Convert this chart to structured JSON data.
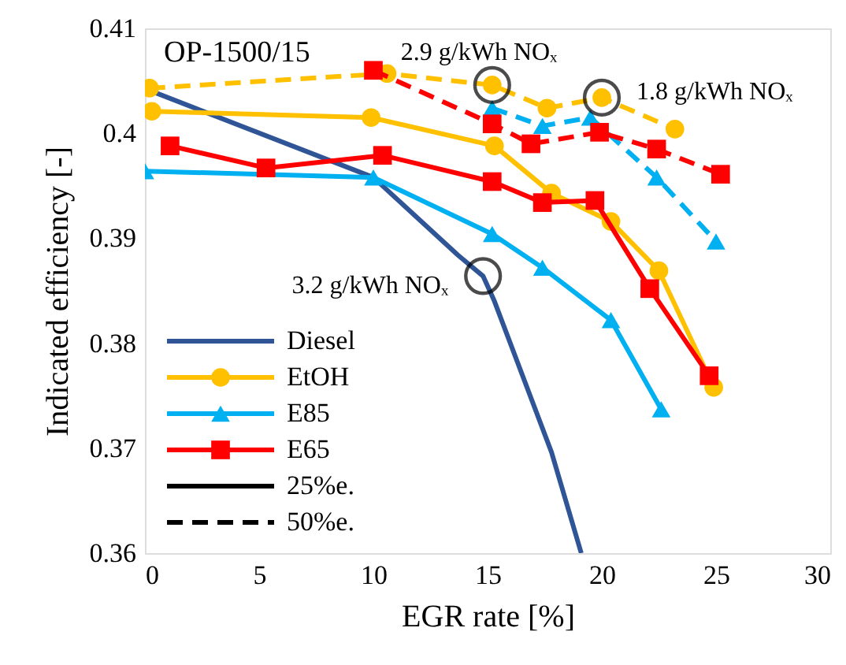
{
  "chart_data": {
    "type": "line",
    "title": "OP-1500/15",
    "xlabel": "EGR rate [%]",
    "ylabel": "Indicated efficiency [-]",
    "xlim": [
      0,
      30
    ],
    "xticks": [
      0,
      5,
      10,
      15,
      20,
      25,
      30
    ],
    "ylim": [
      0.36,
      0.41
    ],
    "yticks": [
      0.36,
      0.37,
      0.38,
      0.39,
      0.4,
      0.41
    ],
    "grid": false,
    "legend": "bottom left",
    "series": [
      {
        "name": "Diesel",
        "color": "#2f5597",
        "marker": "none",
        "line_style": "solid",
        "x": [
          0.3,
          10,
          13.7,
          14.8,
          15.3,
          17.8,
          19.1
        ],
        "values": [
          0.404,
          0.3958,
          0.3884,
          0.3864,
          0.384,
          0.3696,
          0.36
        ]
      },
      {
        "name": "EtOH",
        "color": "#ffc000",
        "marker": "circle",
        "line_style": "solid",
        "x": [
          0.3,
          9.9,
          15.3,
          17.8,
          20.4,
          22.5,
          24.9
        ],
        "values": [
          0.4021,
          0.4015,
          0.3988,
          0.3943,
          0.3916,
          0.3869,
          0.3758
        ]
      },
      {
        "name": "E85",
        "color": "#00b0f0",
        "marker": "triangle",
        "line_style": "solid",
        "x": [
          0,
          10,
          15.2,
          17.4,
          20.4,
          22.6
        ],
        "values": [
          0.3964,
          0.3958,
          0.3904,
          0.3872,
          0.3822,
          0.3737
        ]
      },
      {
        "name": "E65",
        "color": "#ff0000",
        "marker": "square",
        "line_style": "solid",
        "x": [
          1.1,
          5.3,
          10.4,
          15.2,
          17.4,
          19.7,
          22.1,
          24.7
        ],
        "values": [
          0.3988,
          0.3967,
          0.3979,
          0.3954,
          0.3934,
          0.3936,
          0.3852,
          0.3769
        ]
      },
      {
        "color": "#ffc000",
        "marker": "circle",
        "line_style": "dashed",
        "x": [
          0.2,
          10.6,
          15.2,
          17.6,
          20,
          23.2
        ],
        "values": [
          0.4043,
          0.4057,
          0.4046,
          0.4024,
          0.4034,
          0.4004
        ]
      },
      {
        "color": "#00b0f0",
        "marker": "triangle",
        "line_style": "dashed",
        "x": [
          15.2,
          17.4,
          19.5,
          22.4,
          25
        ],
        "values": [
          0.4024,
          0.4007,
          0.4015,
          0.3958,
          0.3897
        ]
      },
      {
        "color": "#ff0000",
        "marker": "square",
        "line_style": "dashed",
        "x": [
          10,
          15.2,
          16.9,
          19.9,
          22.4,
          25.2
        ],
        "values": [
          0.406,
          0.4009,
          0.399,
          0.4001,
          0.3985,
          0.3961
        ]
      }
    ],
    "annotations": [
      {
        "text": "2.9 g/kWh NOₓ",
        "x": 15.2,
        "y": 0.4046
      },
      {
        "text": "1.8 g/kWh NOₓ",
        "x": 20,
        "y": 0.4034
      },
      {
        "text": "3.2 g/kWh NOₓ",
        "x": 14.8,
        "y": 0.3864
      },
      "25%e.",
      "50%e."
    ]
  }
}
